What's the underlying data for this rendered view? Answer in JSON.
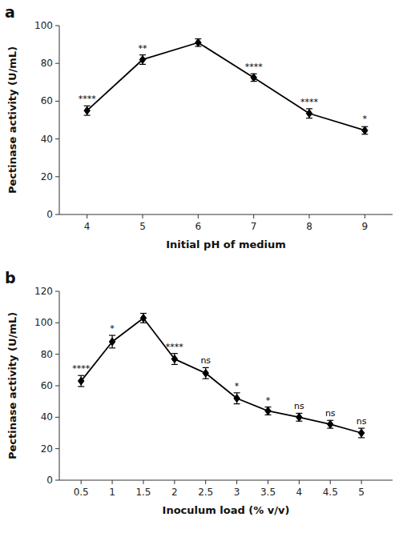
{
  "chart_data": [
    {
      "type": "line",
      "title": "a",
      "x": [
        4,
        5,
        6,
        7,
        8,
        9
      ],
      "values": [
        55.0,
        82.0,
        91.0,
        72.5,
        53.5,
        44.5
      ],
      "errors": [
        2.5,
        2.5,
        2.0,
        2.0,
        2.5,
        2.0
      ],
      "color": "#000000",
      "marker": "diamond",
      "grid": false,
      "annotations": [
        {
          "x": 4,
          "y": 57.5,
          "text": "****"
        },
        {
          "x": 5,
          "y": 84.5,
          "text": "**"
        },
        {
          "x": 7,
          "y": 74.5,
          "text": "****"
        },
        {
          "x": 8,
          "y": 56.0,
          "text": "****"
        },
        {
          "x": 9,
          "y": 47.0,
          "text": "*"
        }
      ],
      "xlabel": "Initial pH of medium",
      "ylabel": "Pectinase activity (U/mL)",
      "xlim": [
        3.5,
        9.5
      ],
      "xticks": [
        4,
        5,
        6,
        7,
        8,
        9
      ],
      "ylim": [
        0,
        100
      ],
      "yticks": [
        0,
        20,
        40,
        60,
        80,
        100
      ]
    },
    {
      "type": "line",
      "title": "b",
      "x": [
        0.5,
        1.0,
        1.5,
        2.0,
        2.5,
        3.0,
        3.5,
        4.0,
        4.5,
        5.0
      ],
      "values": [
        63.0,
        88.0,
        103.0,
        77.0,
        68.0,
        52.0,
        44.0,
        40.0,
        35.5,
        30.0
      ],
      "errors": [
        3.5,
        4.0,
        3.0,
        3.5,
        3.5,
        3.5,
        2.5,
        2.5,
        2.5,
        3.0
      ],
      "color": "#000000",
      "marker": "diamond",
      "grid": false,
      "annotations": [
        {
          "x": 0.5,
          "y": 66.5,
          "text": "****"
        },
        {
          "x": 1.0,
          "y": 92.0,
          "text": "*"
        },
        {
          "x": 2.0,
          "y": 80.5,
          "text": "****"
        },
        {
          "x": 2.5,
          "y": 71.5,
          "text": "ns"
        },
        {
          "x": 3.0,
          "y": 55.5,
          "text": "*"
        },
        {
          "x": 3.5,
          "y": 46.5,
          "text": "*"
        },
        {
          "x": 4.0,
          "y": 42.5,
          "text": "ns"
        },
        {
          "x": 4.5,
          "y": 38.0,
          "text": "ns"
        },
        {
          "x": 5.0,
          "y": 33.0,
          "text": "ns"
        }
      ],
      "xlabel": "Inoculum load (% v/v)",
      "ylabel": "Pectinase activity (U/mL)",
      "xlim": [
        0.15,
        5.5
      ],
      "xticks": [
        0.5,
        1,
        1.5,
        2,
        2.5,
        3,
        3.5,
        4,
        4.5,
        5
      ],
      "ylim": [
        0,
        120
      ],
      "yticks": [
        0,
        20,
        40,
        60,
        80,
        100,
        120
      ]
    }
  ]
}
